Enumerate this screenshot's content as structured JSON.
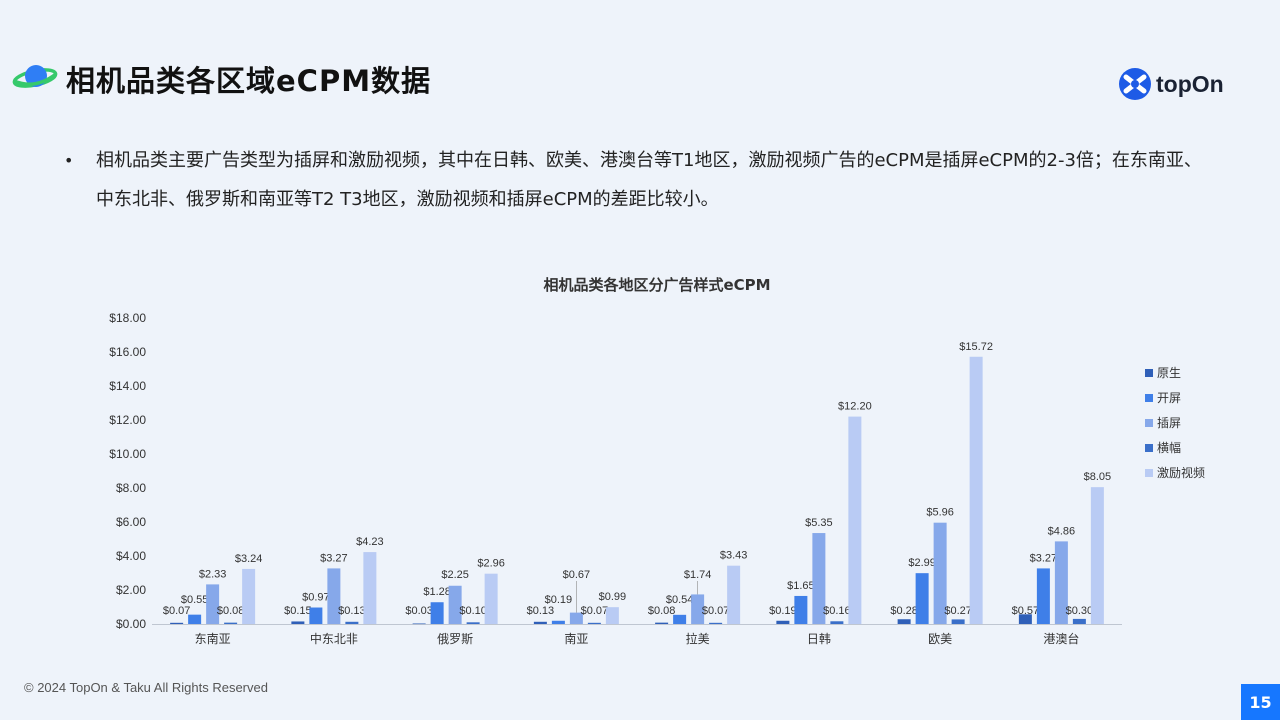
{
  "header": {
    "title": "相机品类各区域eCPM数据",
    "brand_name": "topOn"
  },
  "summary": {
    "bullet": "相机品类主要广告类型为插屏和激励视频，其中在日韩、欧美、港澳台等T1地区，激励视频广告的eCPM是插屏eCPM的2-3倍；在东南亚、中东北非、俄罗斯和南亚等T2 T3地区，激励视频和插屏eCPM的差距比较小。"
  },
  "chart_data": {
    "type": "bar",
    "title": "相机品类各地区分广告样式eCPM",
    "xlabel": "",
    "ylabel": "",
    "ylim": [
      0,
      18
    ],
    "y_ticks": [
      0,
      2,
      4,
      6,
      8,
      10,
      12,
      14,
      16,
      18
    ],
    "y_tick_labels": [
      "$0.00",
      "$2.00",
      "$4.00",
      "$6.00",
      "$8.00",
      "$10.00",
      "$12.00",
      "$14.00",
      "$16.00",
      "$18.00"
    ],
    "grid": false,
    "legend_position": "right",
    "categories": [
      "东南亚",
      "中东北非",
      "俄罗斯",
      "南亚",
      "拉美",
      "日韩",
      "欧美",
      "港澳台"
    ],
    "series": [
      {
        "name": "原生",
        "color": "#2f5fb8",
        "values": [
          0.07,
          0.15,
          0.03,
          0.13,
          0.08,
          0.19,
          0.28,
          0.57
        ],
        "labels": [
          "$0.07",
          "$0.15",
          "$0.03",
          "$0.13",
          "$0.08",
          "$0.19",
          "$0.28",
          "$0.57"
        ]
      },
      {
        "name": "开屏",
        "color": "#3f7fe8",
        "values": [
          0.55,
          0.97,
          1.28,
          0.19,
          0.54,
          1.65,
          2.99,
          3.27
        ],
        "labels": [
          "$0.55",
          "$0.97",
          "$1.28",
          "$0.19",
          "$0.54",
          "$1.65",
          "$2.99",
          "$3.27"
        ]
      },
      {
        "name": "插屏",
        "color": "#86a8ea",
        "values": [
          2.33,
          3.27,
          2.25,
          0.67,
          1.74,
          5.35,
          5.96,
          4.86
        ],
        "labels": [
          "$2.33",
          "$3.27",
          "$2.25",
          "$0.67",
          "$1.74",
          "$5.35",
          "$5.96",
          "$4.86"
        ]
      },
      {
        "name": "横幅",
        "color": "#3a6fc9",
        "values": [
          0.08,
          0.13,
          0.1,
          0.07,
          0.07,
          0.16,
          0.27,
          0.3
        ],
        "labels": [
          "$0.08",
          "$0.13",
          "$0.10",
          "$0.07",
          "$0.07",
          "$0.16",
          "$0.27",
          "$0.30"
        ]
      },
      {
        "name": "激励视频",
        "color": "#b9cbf4",
        "values": [
          3.24,
          4.23,
          2.96,
          0.99,
          3.43,
          12.2,
          15.72,
          8.05
        ],
        "labels": [
          "$3.24",
          "$4.23",
          "$2.96",
          "$0.99",
          "$3.43",
          "$12.20",
          "$15.72",
          "$8.05"
        ]
      }
    ]
  },
  "footer": {
    "copyright": "© 2024 TopOn & Taku All Rights Reserved",
    "page_number": "15"
  }
}
